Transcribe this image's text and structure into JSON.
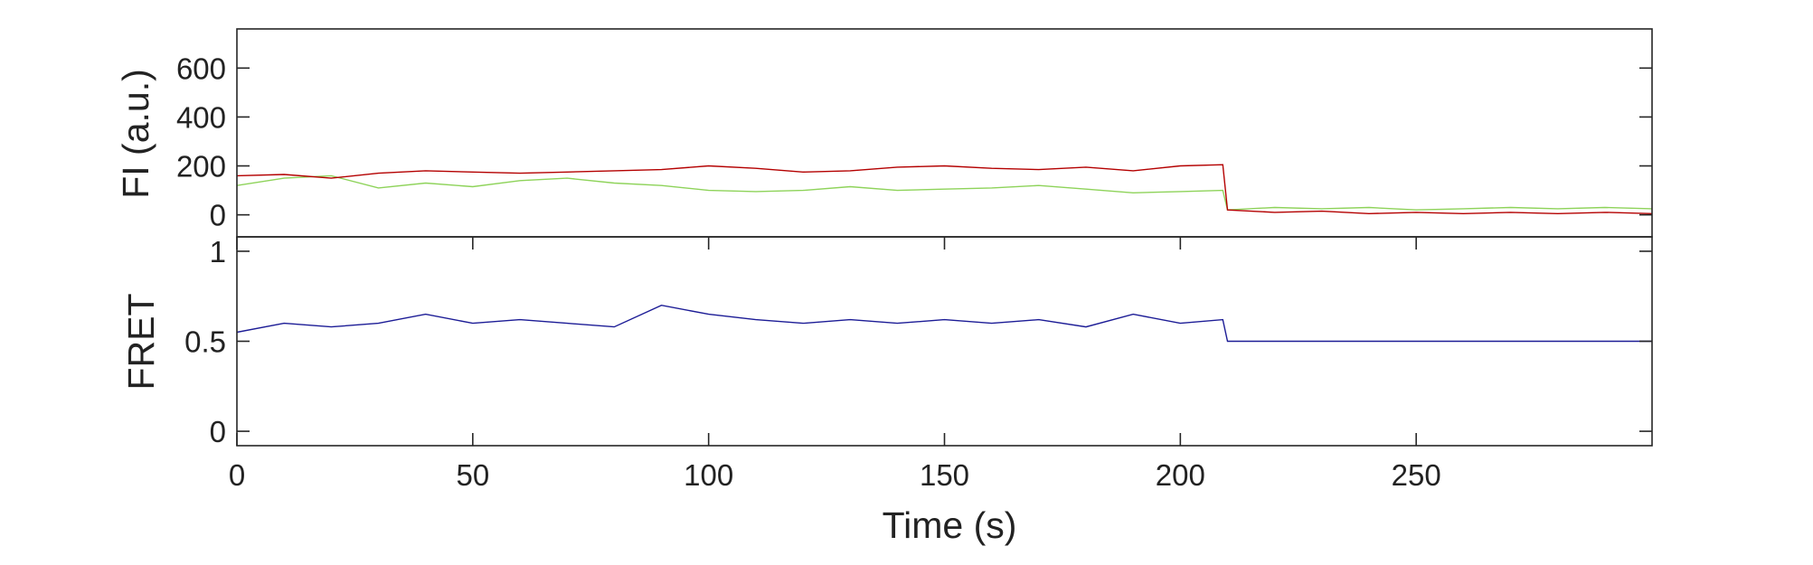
{
  "chart_data": [
    {
      "type": "line",
      "panel": "fluorescence",
      "ylabel": "FI (a.u.)",
      "xlim": [
        0,
        300
      ],
      "ylim": [
        -90,
        760
      ],
      "yticks": [
        0,
        200,
        400,
        600
      ],
      "yticklabels": [
        "0",
        "200",
        "400",
        "600"
      ],
      "grid": false,
      "series": [
        {
          "color": "#8ed35a",
          "x": [
            0,
            10,
            20,
            30,
            40,
            50,
            60,
            70,
            80,
            90,
            100,
            110,
            120,
            130,
            140,
            150,
            160,
            170,
            180,
            190,
            200,
            209,
            210,
            220,
            230,
            240,
            250,
            260,
            270,
            280,
            290,
            300
          ],
          "y": [
            120,
            150,
            160,
            110,
            130,
            115,
            140,
            150,
            130,
            120,
            100,
            95,
            100,
            115,
            100,
            105,
            110,
            120,
            105,
            90,
            95,
            100,
            20,
            30,
            25,
            30,
            20,
            25,
            30,
            25,
            30,
            25
          ]
        },
        {
          "color": "#b40000",
          "x": [
            0,
            10,
            20,
            30,
            40,
            50,
            60,
            70,
            80,
            90,
            100,
            110,
            120,
            130,
            140,
            150,
            160,
            170,
            180,
            190,
            200,
            209,
            210,
            220,
            230,
            240,
            250,
            260,
            270,
            280,
            290,
            300
          ],
          "y": [
            160,
            165,
            150,
            170,
            180,
            175,
            170,
            175,
            180,
            185,
            200,
            190,
            175,
            180,
            195,
            200,
            190,
            185,
            195,
            180,
            200,
            205,
            20,
            10,
            15,
            5,
            10,
            5,
            10,
            5,
            10,
            5
          ]
        }
      ]
    },
    {
      "type": "line",
      "panel": "fret",
      "xlabel": "Time (s)",
      "ylabel": "FRET",
      "xlim": [
        0,
        300
      ],
      "ylim": [
        -0.08,
        1.08
      ],
      "xticks": [
        0,
        50,
        100,
        150,
        200,
        250
      ],
      "xticklabels": [
        "0",
        "50",
        "100",
        "150",
        "200",
        "250"
      ],
      "yticks": [
        0,
        0.5,
        1
      ],
      "yticklabels": [
        "0",
        "0.5",
        "1"
      ],
      "grid": false,
      "series": [
        {
          "color": "#1c1c96",
          "x": [
            0,
            10,
            20,
            30,
            40,
            50,
            60,
            70,
            80,
            90,
            100,
            110,
            120,
            130,
            140,
            150,
            160,
            170,
            180,
            190,
            200,
            209,
            210,
            220,
            230,
            240,
            250,
            260,
            270,
            280,
            290,
            300
          ],
          "y": [
            0.55,
            0.6,
            0.58,
            0.6,
            0.65,
            0.6,
            0.62,
            0.6,
            0.58,
            0.7,
            0.65,
            0.62,
            0.6,
            0.62,
            0.6,
            0.62,
            0.6,
            0.62,
            0.58,
            0.65,
            0.6,
            0.62,
            0.5,
            0.5,
            0.5,
            0.5,
            0.5,
            0.5,
            0.5,
            0.5,
            0.5,
            0.5
          ]
        }
      ]
    }
  ]
}
